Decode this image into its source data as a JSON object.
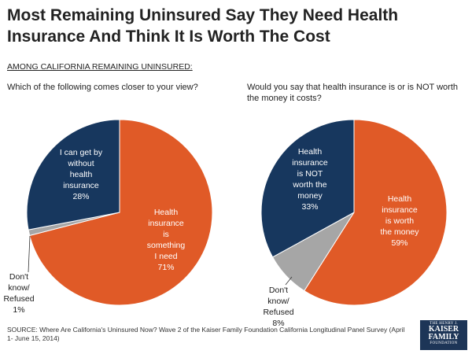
{
  "title": "Most Remaining Uninsured Say They Need Health Insurance And Think It Is Worth The Cost",
  "subhead": "AMONG CALIFORNIA REMAINING UNINSURED:",
  "source": "SOURCE: Where Are California's Uninsured Now? Wave 2 of the Kaiser Family Foundation California Longitudinal Panel Survey (April 1- June 15, 2014)",
  "logo": {
    "line1": "THE HENRY J.",
    "line2a": "KAISER",
    "line2b": "FAMILY",
    "line3": "FOUNDATION"
  },
  "colors": {
    "orange": "#e05a27",
    "navy": "#17375e",
    "gray": "#a6a6a6"
  },
  "chart_data": [
    {
      "type": "pie",
      "question": "Which of the following comes closer to your view?",
      "slices": [
        {
          "label": "Health insurance is something I need",
          "value": 71,
          "display": "71%",
          "lines": [
            "Health",
            "insurance",
            "is",
            "something",
            "I need",
            "71%"
          ],
          "color": "#e05a27"
        },
        {
          "label": "Don't know/ Refused",
          "value": 1,
          "display": "1%",
          "lines": [
            "Don't",
            "know/",
            "Refused",
            "1%"
          ],
          "color": "#a6a6a6"
        },
        {
          "label": "I can get by without health insurance",
          "value": 28,
          "display": "28%",
          "lines": [
            "I can get by",
            "without",
            "health",
            "insurance",
            "28%"
          ],
          "color": "#17375e"
        }
      ]
    },
    {
      "type": "pie",
      "question": "Would you say that health insurance is or is NOT worth the money it costs?",
      "slices": [
        {
          "label": "Health insurance is worth the money",
          "value": 59,
          "display": "59%",
          "lines": [
            "Health",
            "insurance",
            "is worth",
            "the money",
            "59%"
          ],
          "color": "#e05a27"
        },
        {
          "label": "Don't know/ Refused",
          "value": 8,
          "display": "8%",
          "lines": [
            "Don't",
            "know/",
            "Refused",
            "8%"
          ],
          "color": "#a6a6a6"
        },
        {
          "label": "Health insurance is NOT worth the money",
          "value": 33,
          "display": "33%",
          "lines": [
            "Health",
            "insurance",
            "is NOT",
            "worth the",
            "money",
            "33%"
          ],
          "color": "#17375e"
        }
      ]
    }
  ]
}
